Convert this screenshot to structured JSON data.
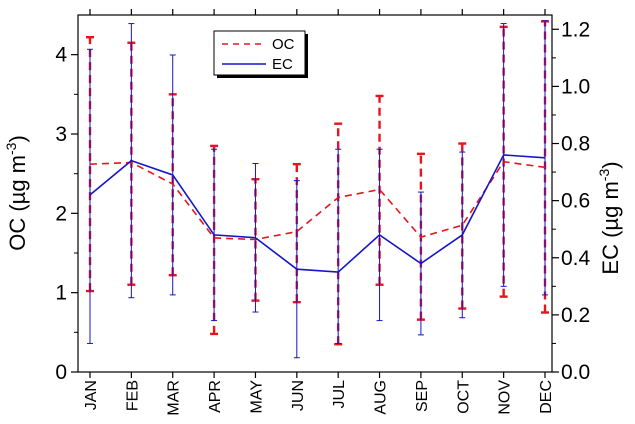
{
  "chart_data": {
    "type": "line",
    "categories": [
      "JAN",
      "FEB",
      "MAR",
      "APR",
      "MAY",
      "JUN",
      "JUL",
      "AUG",
      "SEP",
      "OCT",
      "NOV",
      "DEC"
    ],
    "y_left": {
      "label_main": "OC (µg m",
      "label_sup": "-3",
      "label_end": ")",
      "ylim": [
        0,
        4.5
      ],
      "ticks": [
        "0",
        "1",
        "2",
        "3",
        "4"
      ]
    },
    "y_right": {
      "label_main": "EC (µg m",
      "label_sup": "-3",
      "label_end": ")",
      "ylim": [
        0,
        1.25
      ],
      "ticks": [
        "0.0",
        "0.2",
        "0.4",
        "0.6",
        "0.8",
        "1.0",
        "1.2"
      ]
    },
    "series": [
      {
        "name": "OC",
        "axis": "left",
        "color": "#e8141b",
        "dash": true,
        "values": [
          2.62,
          2.64,
          2.37,
          1.69,
          1.67,
          1.77,
          2.2,
          2.3,
          1.7,
          1.85,
          2.65,
          2.58
        ],
        "err_low": [
          1.02,
          1.1,
          1.22,
          0.48,
          0.9,
          0.88,
          0.35,
          1.1,
          0.66,
          0.8,
          0.95,
          0.75
        ],
        "err_high": [
          4.22,
          4.15,
          3.5,
          2.85,
          2.43,
          2.62,
          3.13,
          3.48,
          2.75,
          2.88,
          4.35,
          4.42
        ]
      },
      {
        "name": "EC",
        "axis": "right",
        "color": "#1515c9",
        "dash": false,
        "values": [
          0.62,
          0.74,
          0.69,
          0.48,
          0.47,
          0.36,
          0.35,
          0.48,
          0.38,
          0.48,
          0.76,
          0.75
        ],
        "err_low": [
          0.1,
          0.26,
          0.27,
          0.18,
          0.21,
          0.05,
          0.1,
          0.18,
          0.13,
          0.19,
          0.3,
          0.27
        ],
        "err_high": [
          1.13,
          1.22,
          1.11,
          0.78,
          0.73,
          0.67,
          0.78,
          0.78,
          0.63,
          0.77,
          1.22,
          1.23
        ]
      }
    ],
    "legend": {
      "position": "top-center",
      "entries": [
        "OC",
        "EC"
      ]
    },
    "grid": false
  }
}
